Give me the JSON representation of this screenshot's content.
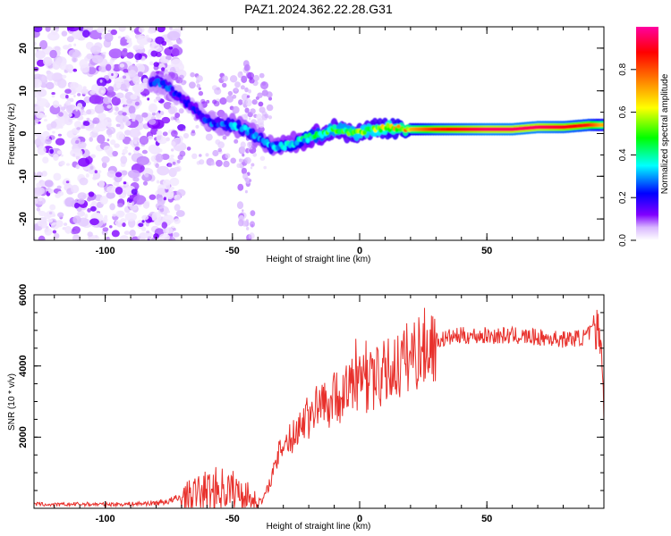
{
  "title": "PAZ1.2024.362.22.28.G31",
  "chart_data": [
    {
      "type": "heatmap",
      "xlabel": "Height of straight line (km)",
      "ylabel": "Frequency (Hz)",
      "xlim": [
        -128,
        96
      ],
      "ylim": [
        -25,
        25
      ],
      "xticks": [
        -100,
        -50,
        0,
        50
      ],
      "yticks": [
        -20,
        -10,
        0,
        10,
        20
      ],
      "colorbar": {
        "label": "Normalized spectral amplitude",
        "range": [
          0,
          1
        ],
        "ticks": [
          "0.0",
          "0.2",
          "0.4",
          "0.6",
          "0.8"
        ],
        "colors": [
          "#ffffff",
          "#d9b8ff",
          "#8000ff",
          "#0000ff",
          "#00ffff",
          "#00ff00",
          "#ffff00",
          "#ff8000",
          "#ff0000",
          "#ff00a0"
        ]
      },
      "ridge": {
        "x": [
          -80,
          -75,
          -70,
          -65,
          -60,
          -55,
          -50,
          -45,
          -40,
          -35,
          -30,
          -25,
          -20,
          -15,
          -10,
          -5,
          0,
          5,
          10,
          20,
          30,
          40,
          50,
          60,
          70,
          80,
          90,
          95
        ],
        "y": [
          12,
          11,
          8,
          6,
          3,
          2,
          2,
          1,
          -1,
          -3,
          -3,
          -2,
          -1,
          0,
          1,
          0.5,
          0,
          1,
          1.5,
          1,
          1,
          1,
          1,
          1,
          1.5,
          1.5,
          2,
          2
        ],
        "amplitude": [
          0.25,
          0.25,
          0.2,
          0.2,
          0.25,
          0.25,
          0.3,
          0.3,
          0.3,
          0.3,
          0.35,
          0.35,
          0.4,
          0.45,
          0.5,
          0.5,
          0.55,
          0.55,
          0.6,
          0.7,
          0.85,
          0.9,
          0.95,
          0.95,
          0.95,
          0.9,
          0.85,
          0.7
        ]
      }
    },
    {
      "type": "line",
      "xlabel": "Height of straight line (km)",
      "ylabel": "SNR (10 * v/v)",
      "xlim": [
        -128,
        96
      ],
      "ylim": [
        0,
        6000
      ],
      "xticks": [
        -100,
        -50,
        0,
        50
      ],
      "yticks": [
        2000,
        4000,
        6000
      ],
      "color": "#e8312c",
      "series": [
        {
          "x": [
            -128,
            -120,
            -110,
            -100,
            -90,
            -80,
            -75,
            -70,
            -65,
            -60,
            -55,
            -50,
            -45,
            -42,
            -39,
            -37,
            -35,
            -33,
            -31,
            -29,
            -27,
            -25,
            -22,
            -20,
            -17,
            -15,
            -12,
            -10,
            -7,
            -5,
            -2,
            0,
            2,
            5,
            8,
            10,
            15,
            20,
            25,
            30,
            35,
            40,
            50,
            60,
            70,
            80,
            88,
            92,
            94,
            95,
            96
          ],
          "y": [
            120,
            100,
            120,
            110,
            120,
            150,
            200,
            300,
            400,
            500,
            550,
            500,
            400,
            250,
            150,
            400,
            800,
            1200,
            1700,
            1900,
            1900,
            2200,
            2500,
            2600,
            2800,
            2900,
            3000,
            3100,
            3200,
            3300,
            3500,
            3600,
            3500,
            3600,
            3700,
            3800,
            4000,
            4300,
            4500,
            4700,
            4800,
            4850,
            4850,
            4850,
            4800,
            4750,
            4800,
            5000,
            5100,
            4700,
            2700
          ]
        }
      ]
    }
  ]
}
